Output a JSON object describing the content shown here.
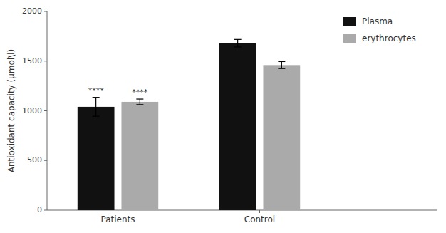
{
  "chart_data": {
    "type": "bar",
    "categories": [
      "Patients",
      "Control"
    ],
    "series": [
      {
        "name": "Plasma",
        "color": "#111111",
        "values": [
          1040,
          1680
        ],
        "errors": [
          95,
          38
        ],
        "annotations": [
          "****",
          null
        ]
      },
      {
        "name": "erythrocytes",
        "color": "#aaaaaa",
        "values": [
          1090,
          1460
        ],
        "errors": [
          28,
          35
        ],
        "annotations": [
          "****",
          null
        ]
      }
    ],
    "ylabel": "Antioxidant capacity (μmol\\l)",
    "ylim": [
      0,
      2000
    ],
    "yticks": [
      0,
      500,
      1000,
      1500,
      2000
    ],
    "legend": "upper right"
  }
}
